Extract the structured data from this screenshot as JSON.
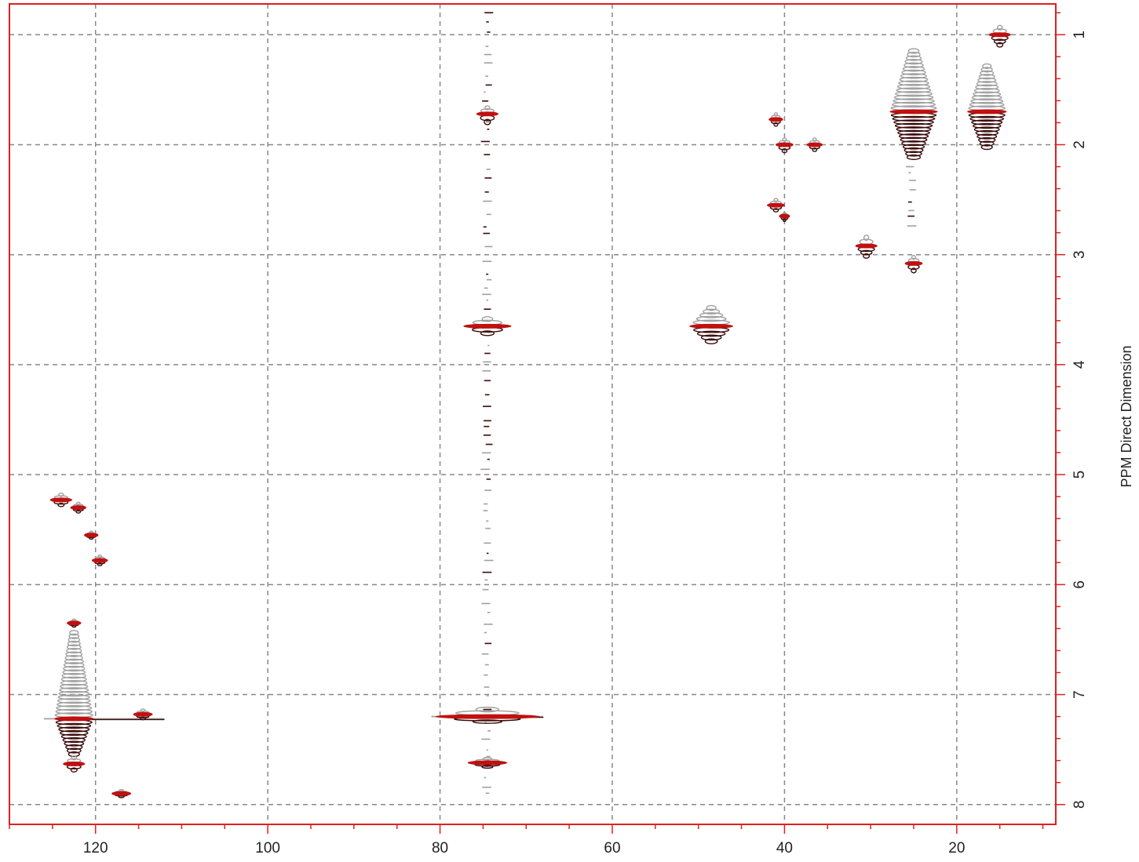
{
  "chart_data": {
    "type": "scatter",
    "title": "",
    "xlabel": "",
    "ylabel": "PPM Direct Dimension",
    "xlim": [
      130.0,
      8.5
    ],
    "ylim": [
      0.72,
      8.18
    ],
    "x_axis_reversed": true,
    "y_axis_increases_downward": true,
    "x_major_ticks": [
      120,
      100,
      80,
      60,
      40,
      20
    ],
    "x_minor_step": 5,
    "y_major_ticks": [
      1,
      2,
      3,
      4,
      5,
      6,
      7,
      8
    ],
    "y_minor_step": 0.2,
    "grid": true,
    "colors": {
      "frame": "#e02020",
      "grid": "#888888",
      "positive_contour": "#a0a0a0",
      "negative_contour": "#3a0a0a",
      "peak_center": "#c01010"
    },
    "peaks": [
      {
        "x": 15.0,
        "y": 1.0,
        "w": 2.5,
        "up": 0.07,
        "down": 0.1
      },
      {
        "x": 16.5,
        "y": 1.7,
        "w": 4.5,
        "up": 0.45,
        "down": 0.35
      },
      {
        "x": 25.0,
        "y": 1.7,
        "w": 5.5,
        "up": 0.6,
        "down": 0.45
      },
      {
        "x": 30.5,
        "y": 2.92,
        "w": 2.5,
        "up": 0.08,
        "down": 0.1
      },
      {
        "x": 25.0,
        "y": 3.08,
        "w": 2.0,
        "up": 0.06,
        "down": 0.07
      },
      {
        "x": 48.5,
        "y": 3.65,
        "w": 5.0,
        "up": 0.18,
        "down": 0.15
      },
      {
        "x": 40.0,
        "y": 2.0,
        "w": 2.0,
        "up": 0.05,
        "down": 0.06
      },
      {
        "x": 41.0,
        "y": 1.77,
        "w": 1.6,
        "up": 0.05,
        "down": 0.05
      },
      {
        "x": 41.0,
        "y": 2.55,
        "w": 2.0,
        "up": 0.05,
        "down": 0.05
      },
      {
        "x": 40.0,
        "y": 2.65,
        "w": 1.2,
        "up": 0.03,
        "down": 0.04
      },
      {
        "x": 36.5,
        "y": 2.0,
        "w": 1.8,
        "up": 0.05,
        "down": 0.05
      },
      {
        "x": 74.5,
        "y": 1.72,
        "w": 2.5,
        "up": 0.06,
        "down": 0.08
      },
      {
        "x": 74.5,
        "y": 3.65,
        "w": 5.5,
        "up": 0.07,
        "down": 0.07
      },
      {
        "x": 74.5,
        "y": 7.2,
        "w": 12.0,
        "up": 0.07,
        "down": 0.05
      },
      {
        "x": 74.5,
        "y": 7.62,
        "w": 4.5,
        "up": 0.04,
        "down": 0.04
      },
      {
        "x": 122.5,
        "y": 7.22,
        "w": 4.5,
        "up": 0.85,
        "down": 0.35
      },
      {
        "x": 122.5,
        "y": 7.63,
        "w": 2.5,
        "up": 0.06,
        "down": 0.06
      },
      {
        "x": 114.5,
        "y": 7.18,
        "w": 2.2,
        "up": 0.04,
        "down": 0.04
      },
      {
        "x": 117.0,
        "y": 7.9,
        "w": 2.2,
        "up": 0.03,
        "down": 0.03
      },
      {
        "x": 124.0,
        "y": 5.23,
        "w": 2.5,
        "up": 0.05,
        "down": 0.05
      },
      {
        "x": 122.0,
        "y": 5.3,
        "w": 1.8,
        "up": 0.04,
        "down": 0.04
      },
      {
        "x": 120.5,
        "y": 5.55,
        "w": 1.6,
        "up": 0.03,
        "down": 0.03
      },
      {
        "x": 119.5,
        "y": 5.78,
        "w": 1.8,
        "up": 0.04,
        "down": 0.04
      },
      {
        "x": 122.5,
        "y": 6.35,
        "w": 1.6,
        "up": 0.03,
        "down": 0.03
      }
    ],
    "streaks": [
      {
        "x1": 74.3,
        "x2": 74.8,
        "y1": 0.8,
        "y2": 8.0
      },
      {
        "x1": 25.0,
        "x2": 25.6,
        "y1": 2.2,
        "y2": 2.75
      }
    ],
    "ridges": [
      {
        "x1": 126.0,
        "x2": 112.0,
        "y": 7.22
      },
      {
        "x1": 81.0,
        "x2": 68.0,
        "y": 7.2
      }
    ]
  }
}
